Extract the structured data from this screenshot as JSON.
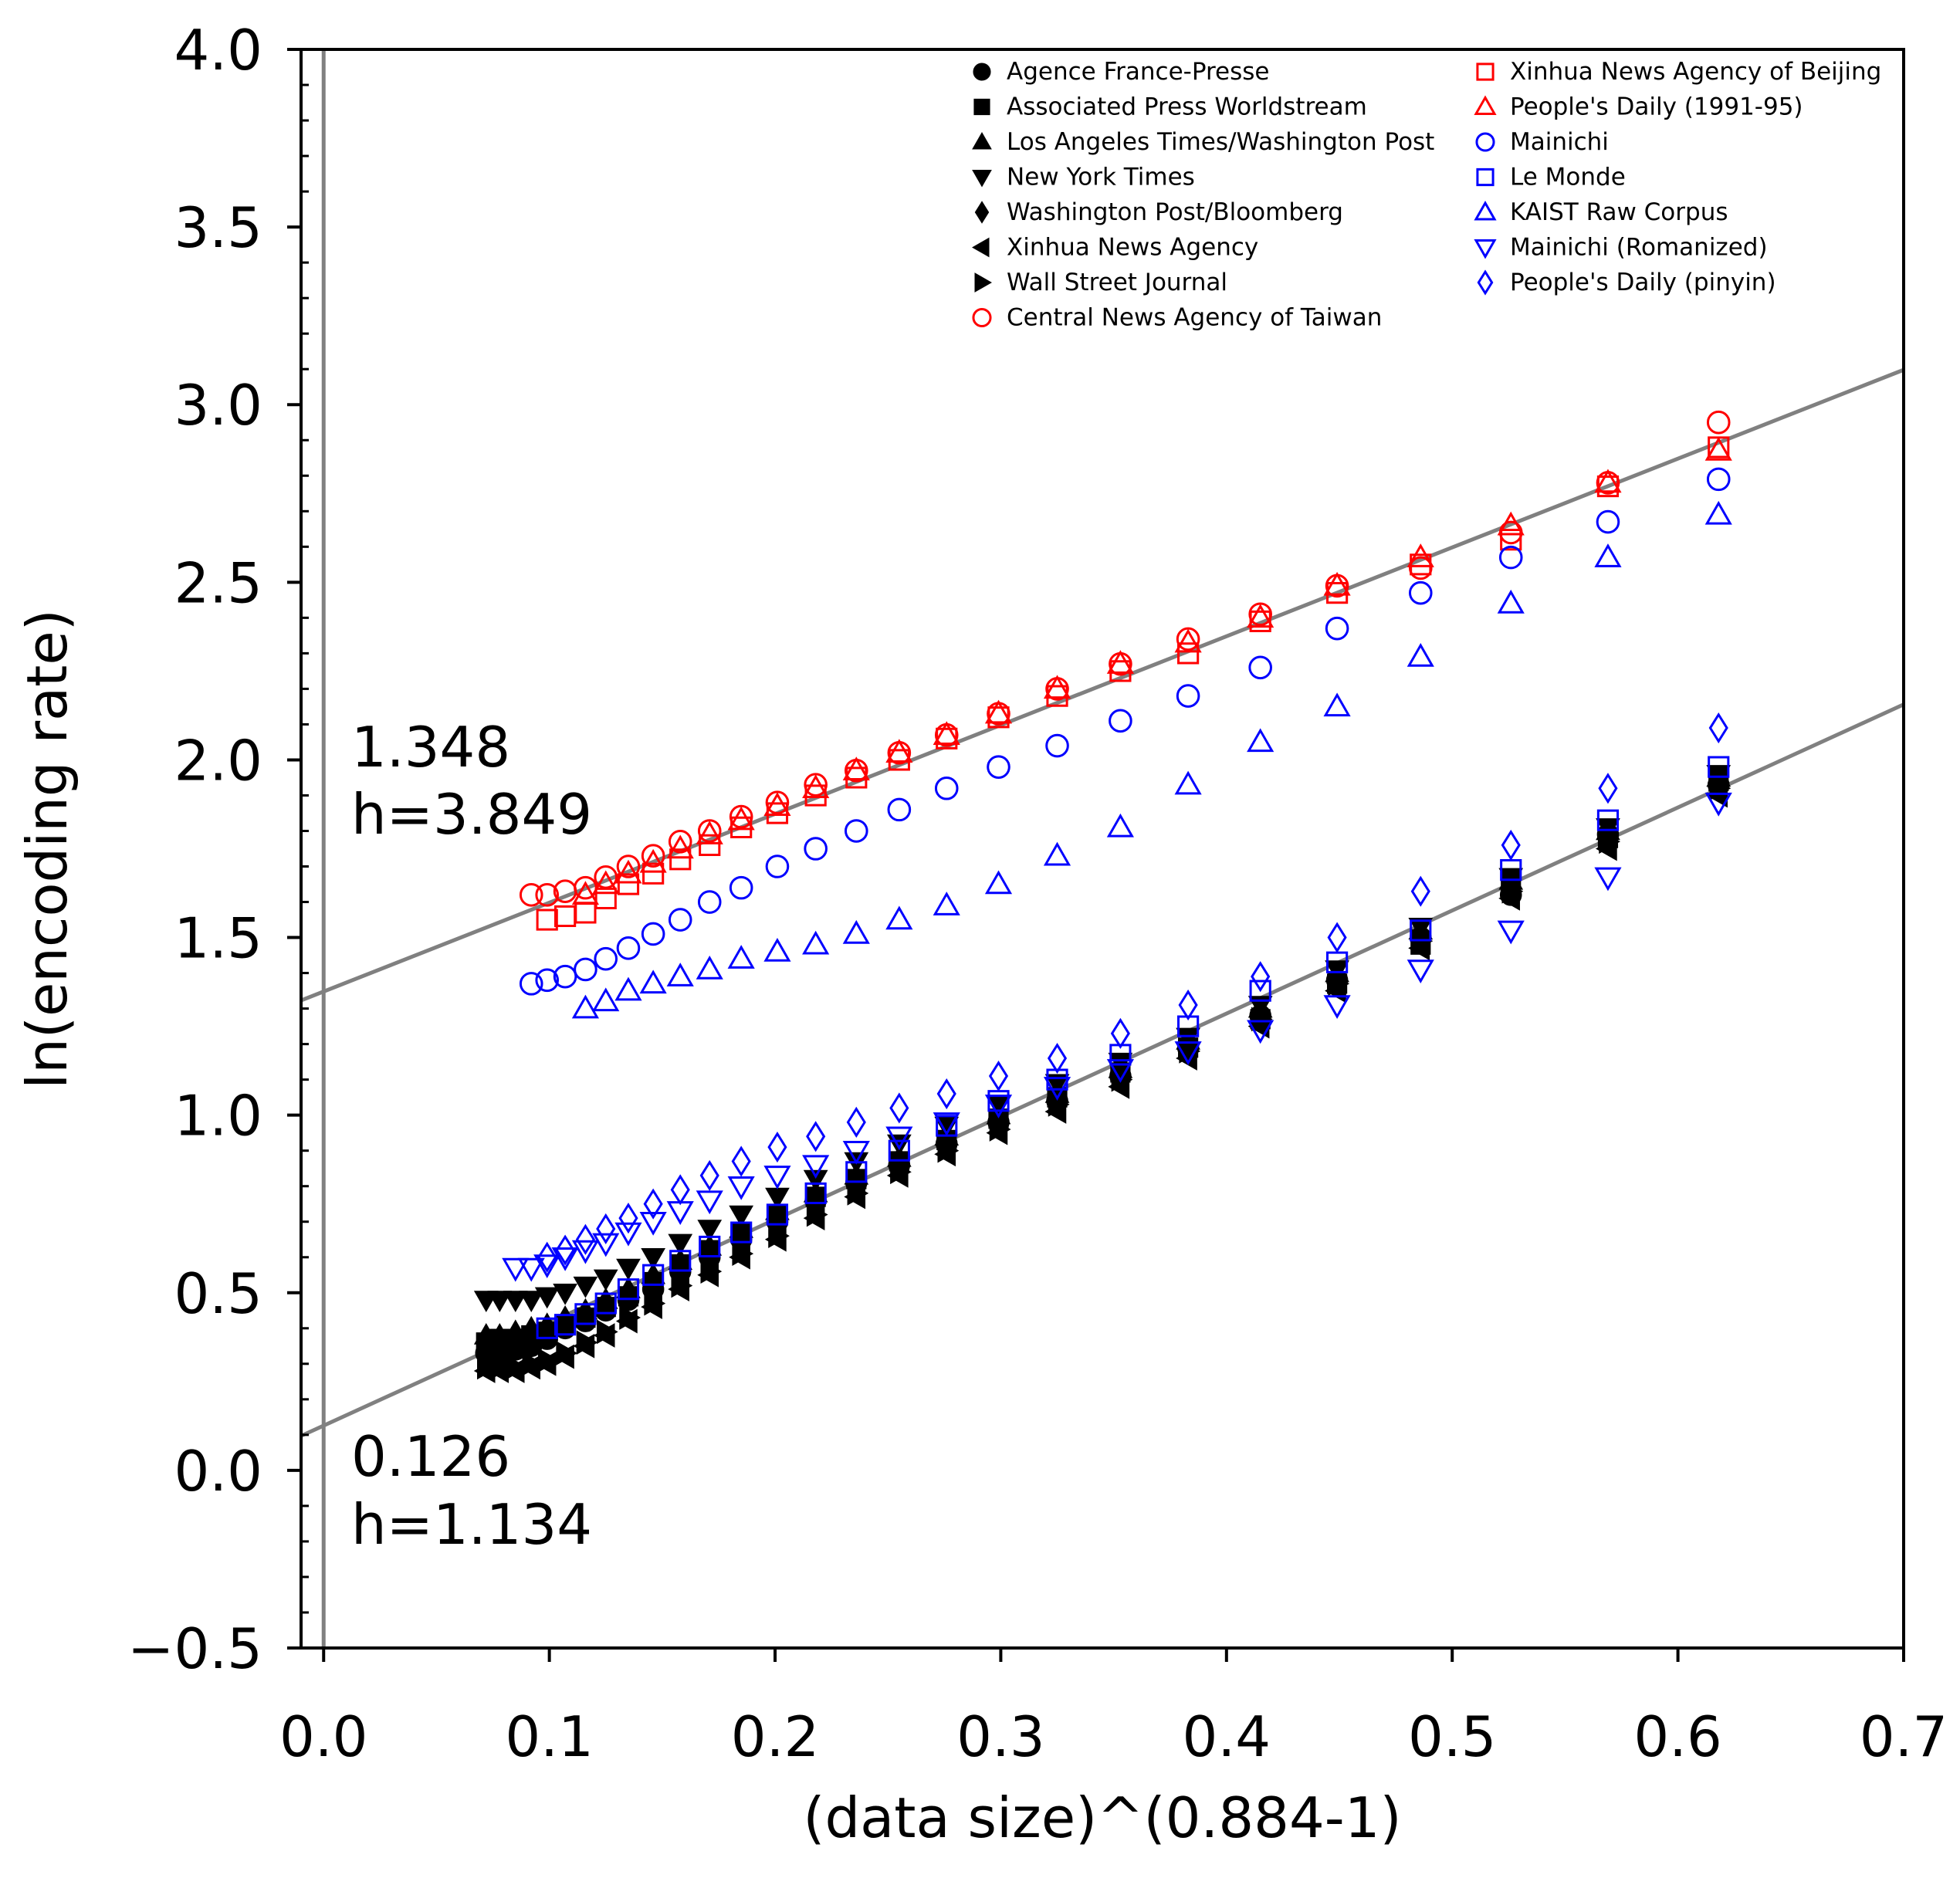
{
  "chart_data": {
    "type": "scatter",
    "title": "",
    "xlabel": "(data size)^(0.884-1)",
    "ylabel": "ln(encoding rate)",
    "xlim": [
      -0.01,
      0.7
    ],
    "ylim": [
      -0.5,
      4.0
    ],
    "x_ticks": [
      "0.0",
      "0.1",
      "0.2",
      "0.3",
      "0.4",
      "0.5",
      "0.6",
      "0.7"
    ],
    "y_ticks": [
      "−0.5",
      "0.0",
      "0.5",
      "1.0",
      "1.5",
      "2.0",
      "2.5",
      "3.0",
      "3.5",
      "4.0"
    ],
    "grid": false,
    "legend_position": "top-right",
    "fit_lines": [
      {
        "name": "upper fit",
        "intercept": 1.348,
        "h": 3.849,
        "slope": 2.5,
        "color": "#808080"
      },
      {
        "name": "lower fit",
        "intercept": 0.126,
        "h": 1.134,
        "slope": 2.9,
        "color": "#808080"
      }
    ],
    "annotations": [
      {
        "name": "upper-intercept",
        "text": "1.348"
      },
      {
        "name": "upper-h",
        "text": "h=3.849"
      },
      {
        "name": "lower-intercept",
        "text": "0.126"
      },
      {
        "name": "lower-h",
        "text": "h=1.134"
      }
    ],
    "x": [
      0.618,
      0.569,
      0.526,
      0.486,
      0.449,
      0.415,
      0.383,
      0.353,
      0.325,
      0.299,
      0.276,
      0.255,
      0.236,
      0.218,
      0.201,
      0.185,
      0.171,
      0.158,
      0.146,
      0.135,
      0.125,
      0.116,
      0.107,
      0.099,
      0.092,
      0.085,
      0.078,
      0.072
    ],
    "series": [
      {
        "name": "Agence France-Presse",
        "marker": "circle",
        "filled": true,
        "color": "#000000",
        "y": [
          1.93,
          1.79,
          1.62,
          1.5,
          1.38,
          1.28,
          1.19,
          1.11,
          1.04,
          0.98,
          0.92,
          0.86,
          0.81,
          0.76,
          0.7,
          0.65,
          0.6,
          0.56,
          0.51,
          0.48,
          0.45,
          0.42,
          0.4,
          0.37,
          0.35,
          0.34,
          0.33,
          0.33
        ]
      },
      {
        "name": "Associated Press Worldstream",
        "marker": "square",
        "filled": true,
        "color": "#000000",
        "y": [
          1.94,
          1.78,
          1.65,
          1.48,
          1.37,
          1.27,
          1.19,
          1.12,
          1.05,
          0.99,
          0.93,
          0.87,
          0.82,
          0.77,
          0.72,
          0.67,
          0.62,
          0.58,
          0.53,
          0.49,
          0.46,
          0.43,
          0.41,
          0.39,
          0.38,
          0.37,
          0.37,
          0.36
        ]
      },
      {
        "name": "Los Angeles Times/Washington Post",
        "marker": "triangle-up",
        "filled": true,
        "color": "#000000",
        "y": [
          1.95,
          1.8,
          1.66,
          1.52,
          1.4,
          1.3,
          1.21,
          1.13,
          1.06,
          1.0,
          0.94,
          0.88,
          0.83,
          0.78,
          0.73,
          0.68,
          0.63,
          0.59,
          0.55,
          0.51,
          0.48,
          0.45,
          0.43,
          0.41,
          0.4,
          0.39,
          0.38,
          0.38
        ]
      },
      {
        "name": "New York Times",
        "marker": "triangle-down",
        "filled": true,
        "color": "#000000",
        "y": [
          1.96,
          1.81,
          1.67,
          1.53,
          1.41,
          1.31,
          1.22,
          1.15,
          1.09,
          1.03,
          0.97,
          0.92,
          0.87,
          0.82,
          0.77,
          0.72,
          0.68,
          0.64,
          0.6,
          0.57,
          0.54,
          0.52,
          0.5,
          0.49,
          0.48,
          0.48,
          0.48,
          0.48
        ]
      },
      {
        "name": "Washington Post/Bloomberg",
        "marker": "diamond",
        "filled": true,
        "color": "#000000",
        "y": [
          1.94,
          1.78,
          1.64,
          1.5,
          1.38,
          1.28,
          1.19,
          1.12,
          1.05,
          0.99,
          0.93,
          0.87,
          0.82,
          0.77,
          0.72,
          0.67,
          0.62,
          0.58,
          0.53,
          0.49,
          0.46,
          0.43,
          0.41,
          0.39,
          0.37,
          0.36,
          0.36,
          0.35
        ]
      },
      {
        "name": "Xinhua News Agency",
        "marker": "triangle-left",
        "filled": true,
        "color": "#000000",
        "y": [
          1.9,
          1.75,
          1.61,
          1.47,
          1.35,
          1.25,
          1.16,
          1.08,
          1.01,
          0.95,
          0.89,
          0.83,
          0.77,
          0.71,
          0.65,
          0.6,
          0.55,
          0.51,
          0.46,
          0.42,
          0.38,
          0.35,
          0.32,
          0.3,
          0.29,
          0.28,
          0.28,
          0.28
        ]
      },
      {
        "name": "Wall Street Journal",
        "marker": "triangle-right",
        "filled": true,
        "color": "#000000",
        "y": [
          1.92,
          1.77,
          1.63,
          1.49,
          1.37,
          1.27,
          1.18,
          1.1,
          1.03,
          0.96,
          0.9,
          0.84,
          0.78,
          0.72,
          0.66,
          0.61,
          0.56,
          0.52,
          0.47,
          0.43,
          0.39,
          0.36,
          0.33,
          0.31,
          0.3,
          0.29,
          0.29,
          0.29
        ]
      },
      {
        "name": "Central News Agency of Taiwan",
        "marker": "circle",
        "filled": false,
        "color": "#ff0000",
        "y": [
          2.95,
          2.78,
          2.64,
          2.54,
          2.49,
          2.41,
          2.34,
          2.27,
          2.2,
          2.13,
          2.07,
          2.02,
          1.97,
          1.93,
          1.88,
          1.84,
          1.8,
          1.77,
          1.73,
          1.7,
          1.67,
          1.64,
          1.63,
          1.62,
          1.62
        ]
      },
      {
        "name": "Xinhua News Agency of Beijing",
        "marker": "square",
        "filled": false,
        "color": "#ff0000",
        "y": [
          2.88,
          2.77,
          2.62,
          2.55,
          2.47,
          2.39,
          2.3,
          2.25,
          2.18,
          2.12,
          2.06,
          2.0,
          1.95,
          1.9,
          1.85,
          1.81,
          1.76,
          1.72,
          1.68,
          1.65,
          1.61,
          1.57,
          1.56,
          1.55
        ]
      },
      {
        "name": "People's Daily (1991-95)",
        "marker": "triangle-up",
        "filled": false,
        "color": "#ff0000",
        "y": [
          2.87,
          2.78,
          2.66,
          2.57,
          2.49,
          2.4,
          2.33,
          2.27,
          2.2,
          2.13,
          2.07,
          2.02,
          1.97,
          1.92,
          1.87,
          1.83,
          1.79,
          1.75,
          1.71,
          1.68,
          1.65,
          1.62
        ]
      },
      {
        "name": "Mainichi",
        "marker": "circle",
        "filled": false,
        "color": "#0000ff",
        "y": [
          2.79,
          2.67,
          2.57,
          2.47,
          2.37,
          2.26,
          2.18,
          2.11,
          2.04,
          1.98,
          1.92,
          1.86,
          1.8,
          1.75,
          1.7,
          1.64,
          1.6,
          1.55,
          1.51,
          1.47,
          1.44,
          1.41,
          1.39,
          1.38,
          1.37
        ]
      },
      {
        "name": "Le Monde",
        "marker": "square",
        "filled": false,
        "color": "#0000ff",
        "y": [
          1.98,
          1.83,
          1.69,
          1.52,
          1.43,
          1.35,
          1.25,
          1.17,
          1.1,
          1.04,
          0.97,
          0.9,
          0.84,
          0.78,
          0.72,
          0.67,
          0.63,
          0.59,
          0.55,
          0.51,
          0.47,
          0.44,
          0.41,
          0.4
        ]
      },
      {
        "name": "KAIST Raw Corpus",
        "marker": "triangle-up",
        "filled": false,
        "color": "#0000ff",
        "y": [
          2.69,
          2.57,
          2.44,
          2.29,
          2.15,
          2.05,
          1.93,
          1.81,
          1.73,
          1.65,
          1.59,
          1.55,
          1.51,
          1.48,
          1.46,
          1.44,
          1.41,
          1.39,
          1.37,
          1.35,
          1.32,
          1.3
        ]
      },
      {
        "name": "Mainichi (Romanized)",
        "marker": "triangle-down",
        "filled": false,
        "color": "#0000ff",
        "y": [
          1.88,
          1.67,
          1.52,
          1.41,
          1.31,
          1.24,
          1.18,
          1.13,
          1.08,
          1.03,
          0.98,
          0.94,
          0.9,
          0.86,
          0.83,
          0.8,
          0.76,
          0.73,
          0.7,
          0.67,
          0.64,
          0.62,
          0.6,
          0.58,
          0.57,
          0.57
        ]
      },
      {
        "name": "People's Daily (pinyin)",
        "marker": "diamond",
        "filled": false,
        "color": "#0000ff",
        "y": [
          2.09,
          1.92,
          1.76,
          1.63,
          1.5,
          1.39,
          1.31,
          1.23,
          1.16,
          1.11,
          1.06,
          1.02,
          0.98,
          0.94,
          0.91,
          0.87,
          0.83,
          0.79,
          0.75,
          0.71,
          0.68,
          0.65,
          0.62,
          0.6
        ]
      }
    ]
  }
}
